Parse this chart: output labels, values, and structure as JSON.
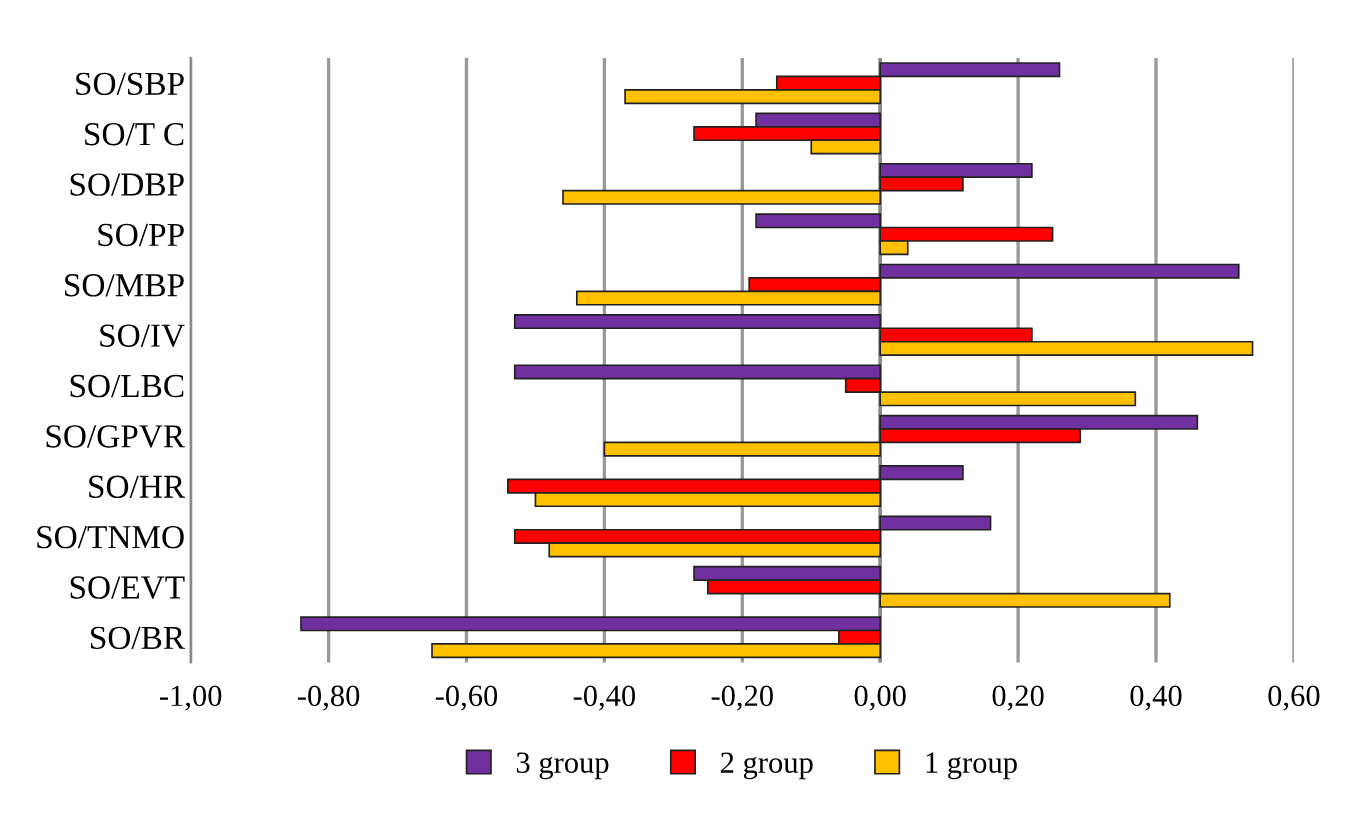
{
  "chart_data": {
    "type": "bar",
    "orientation": "horizontal",
    "categories": [
      "SO/SBP",
      "SO/T C",
      "SO/DBP",
      "SO/PP",
      "SO/MBP",
      "SO/IV",
      "SO/LBC",
      "SO/GPVR",
      "SO/HR",
      "SO/TNMO",
      "SO/EVT",
      "SO/BR"
    ],
    "series": [
      {
        "name": "3 group",
        "color": "#7030a0",
        "values": [
          0.26,
          -0.18,
          0.22,
          -0.18,
          0.52,
          -0.53,
          -0.53,
          0.46,
          0.12,
          0.16,
          -0.27,
          -0.84
        ]
      },
      {
        "name": "2 group",
        "color": "#ff0000",
        "values": [
          -0.15,
          -0.27,
          0.12,
          0.25,
          -0.19,
          0.22,
          -0.05,
          0.29,
          -0.54,
          -0.53,
          -0.25,
          -0.06
        ]
      },
      {
        "name": "1 group",
        "color": "#ffc000",
        "values": [
          -0.37,
          -0.1,
          -0.46,
          0.04,
          -0.44,
          0.54,
          0.37,
          -0.4,
          -0.5,
          -0.48,
          0.42,
          -0.65
        ]
      }
    ],
    "xlim": [
      -1.0,
      0.6
    ],
    "xticks": [
      {
        "value": -1.0,
        "label": "-1,00"
      },
      {
        "value": -0.8,
        "label": "-0,80"
      },
      {
        "value": -0.6,
        "label": "-0,60"
      },
      {
        "value": -0.4,
        "label": "-0,40"
      },
      {
        "value": -0.2,
        "label": "-0,20"
      },
      {
        "value": 0.0,
        "label": "0,00"
      },
      {
        "value": 0.2,
        "label": "0,20"
      },
      {
        "value": 0.4,
        "label": "0,40"
      },
      {
        "value": 0.6,
        "label": "0,60"
      }
    ],
    "grid": "x",
    "legend": "bottom"
  }
}
